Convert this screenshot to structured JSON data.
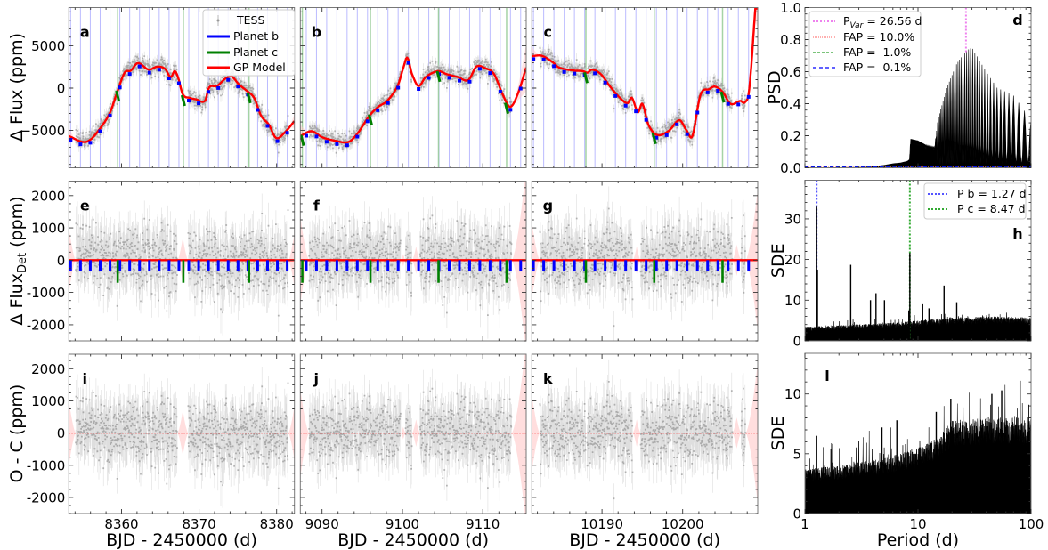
{
  "chart_data": {
    "type": "scatter",
    "light_curves": {
      "xlabel": "BJD - 2450000 (d)",
      "legend": {
        "placement": "top-right",
        "entries": [
          {
            "label": "TESS",
            "color": "#999999"
          },
          {
            "label": "Planet b",
            "color": "#0000ff"
          },
          {
            "label": "Planet c",
            "color": "#008000"
          },
          {
            "label": "GP Model",
            "color": "#ff0000"
          }
        ]
      },
      "planet_b_period": 1.27,
      "planet_c_period": 8.47,
      "planet_b_depth_ppm": 350,
      "planet_c_depth_ppm": 700,
      "scatter_rms_ppm": 430,
      "rows": [
        {
          "ylabel": "Δ Flux (ppm)",
          "ylim": [
            -9400,
            9500
          ],
          "yticks": [
            -5000,
            0,
            5000
          ],
          "ytick_labels": [
            "−5000",
            "0",
            "5000"
          ],
          "yminor": 1000,
          "letters": [
            "a",
            "b",
            "c"
          ]
        },
        {
          "ylabel": "Δ Flux",
          "ylabel_sub": "Det",
          "ylabel_unit": " (ppm)",
          "ylim": [
            -2500,
            2450
          ],
          "yticks": [
            -2000,
            -1000,
            0,
            1000,
            2000
          ],
          "ytick_labels": [
            "-2000",
            "-1000",
            "0",
            "1000",
            "2000"
          ],
          "yminor": 250,
          "letters": [
            "e",
            "f",
            "g"
          ]
        },
        {
          "ylabel": "O - C (ppm)",
          "ylim": [
            -2500,
            2450
          ],
          "yticks": [
            -2000,
            -1000,
            0,
            1000,
            2000
          ],
          "ytick_labels": [
            "-2000",
            "-1000",
            "0",
            "1000",
            "2000"
          ],
          "yminor": 250,
          "letters": [
            "i",
            "j",
            "k"
          ]
        }
      ],
      "columns": [
        {
          "xlim": [
            8353.2,
            8382.3
          ],
          "xticks": [
            8360,
            8370,
            8380
          ],
          "xtick_labels": [
            "8360",
            "8370",
            "8380"
          ],
          "data_segments": [
            [
              8354.1,
              8367.2
            ],
            [
              8368.6,
              8381.5
            ]
          ],
          "planet_b_first_transit": 8353.43,
          "planet_c_first_transit": 8359.5,
          "gp_model": {
            "x": [
              8353.2,
              8355.0,
              8356.0,
              8357.3,
              8358.5,
              8359.45,
              8360.4,
              8361.2,
              8362.1,
              8363.5,
              8364.6,
              8365.6,
              8366.35,
              8366.85,
              8367.3,
              8367.9,
              8368.8,
              8369.6,
              8370.75,
              8371.3,
              8372.3,
              8373.4,
              8374.2,
              8375.15,
              8376.1,
              8377.1,
              8378.0,
              8379.0,
              8379.95,
              8381.1,
              8382.3
            ],
            "y": [
              -5650,
              -6350,
              -6070,
              -4670,
              -2910,
              -450,
              1820,
              2070,
              2950,
              2180,
              2530,
              2280,
              1300,
              2000,
              1230,
              -740,
              -1160,
              -1330,
              -1510,
              70,
              250,
              1120,
              1370,
              420,
              -280,
              -1160,
              -3260,
              -4320,
              -5890,
              -5190,
              -3890
            ]
          }
        },
        {
          "xlim": [
            9087.3,
            9115.4
          ],
          "xticks": [
            9090,
            9100,
            9110
          ],
          "xtick_labels": [
            "9090",
            "9100",
            "9110"
          ],
          "data_segments": [
            [
              9088.4,
              9099.8
            ],
            [
              9100.4,
              9101.2
            ],
            [
              9102.2,
              9113.6
            ]
          ],
          "planet_b_first_transit": 9088.04,
          "planet_c_first_transit": 9087.55,
          "gp_model": {
            "x": [
              9087.3,
              9088.7,
              9090.0,
              9091.8,
              9093.3,
              9094.4,
              9095.9,
              9097.0,
              9098.1,
              9099.4,
              9100.1,
              9100.6,
              9101.2,
              9102.0,
              9102.9,
              9104.4,
              9105.5,
              9106.9,
              9108.2,
              9109.2,
              9110.3,
              9111.4,
              9112.5,
              9113.4,
              9114.3,
              9115.4
            ],
            "y": [
              -5650,
              -5090,
              -5790,
              -6240,
              -6350,
              -5370,
              -3260,
              -2210,
              -1510,
              250,
              2350,
              3580,
              1650,
              250,
              1300,
              2000,
              1650,
              1300,
              950,
              2530,
              2350,
              1650,
              -810,
              -2210,
              -810,
              2420
            ]
          }
        },
        {
          "xlim": [
            10181.3,
            10209.3
          ],
          "xticks": [
            10190,
            10200
          ],
          "xtick_labels": [
            "10190",
            "10200"
          ],
          "data_segments": [
            [
              10182.3,
              10188.0
            ],
            [
              10188.15,
              10193.8
            ],
            [
              10194.8,
              10206.15
            ],
            [
              10207.25,
              10207.8
            ]
          ],
          "planet_b_first_transit": 10181.5,
          "planet_c_first_transit": 10188.0,
          "gp_model": {
            "x": [
              10181.3,
              10182.5,
              10183.8,
              10184.7,
              10186.55,
              10187.65,
              10188.2,
              10188.75,
              10189.85,
              10190.95,
              10192.05,
              10193.15,
              10193.7,
              10194.45,
              10195.0,
              10195.75,
              10196.85,
              10198.3,
              10199.6,
              10200.5,
              10201.2,
              10202.2,
              10203.3,
              10204.0,
              10204.95,
              10205.95,
              10207.15,
              10207.7,
              10208.25,
              10209.0
            ],
            "y": [
              3760,
              3820,
              3120,
              2420,
              2070,
              2000,
              1820,
              2180,
              1650,
              250,
              -980,
              -1790,
              -1160,
              -2840,
              -1860,
              -4320,
              -5540,
              -5020,
              -3790,
              -5020,
              -5650,
              -810,
              -110,
              180,
              -450,
              -1860,
              -1510,
              -1680,
              -110,
              9370
            ]
          }
        }
      ]
    },
    "periodograms": {
      "xlabel": "Period (d)",
      "xscale": "log",
      "xlim": [
        1,
        100
      ],
      "xticks": [
        1,
        10,
        100
      ],
      "xtick_labels": [
        "1",
        "10",
        "100"
      ],
      "panels": [
        {
          "type": "line",
          "letter": "d",
          "ylabel": "PSD",
          "ylim": [
            0,
            1.0
          ],
          "yticks": [
            0,
            0.2,
            0.4,
            0.6,
            0.8,
            1.0
          ],
          "ytick_labels": [
            "0.0",
            "0.2",
            "0.4",
            "0.6",
            "0.8",
            "1.0"
          ],
          "envelope": {
            "period": [
              1,
              3,
              4,
              5,
              6,
              7,
              8,
              8.4,
              8.6,
              10,
              12,
              14,
              15,
              18,
              22,
              26.56,
              30,
              40,
              50,
              70,
              100
            ],
            "power": [
              0,
              0.002,
              0.008,
              0.015,
              0.025,
              0.03,
              0.04,
              0.05,
              0.18,
              0.17,
              0.14,
              0.13,
              0.3,
              0.5,
              0.65,
              0.73,
              0.75,
              0.6,
              0.5,
              0.45,
              0.3
            ]
          },
          "marked_period": {
            "label_main": "P",
            "label_sub": "Var",
            "label_rest": " = 26.56 d",
            "value": 26.56,
            "color": "#ee82ee"
          },
          "fap_levels": [
            {
              "label": "FAP = 10.0%",
              "power": 0.003,
              "color": "#ff7f7f",
              "style": "dotted"
            },
            {
              "label": "FAP =  1.0%",
              "power": 0.005,
              "color": "#2ca02c",
              "style": "dashed"
            },
            {
              "label": "FAP =  0.1%",
              "power": 0.007,
              "color": "#0000ff",
              "style": "dashed"
            }
          ]
        },
        {
          "type": "line",
          "letter": "h",
          "ylabel": "SDE",
          "ylim": [
            0,
            39.5
          ],
          "yticks": [
            0,
            10,
            20,
            30
          ],
          "ytick_labels": [
            "0",
            "10",
            "20",
            "30"
          ],
          "floor": {
            "period": [
              1,
              2,
              5,
              10,
              20,
              50,
              100
            ],
            "sde": [
              3,
              3.3,
              3.8,
              4.3,
              5,
              5.2,
              5
            ]
          },
          "peaks": [
            [
              1.27,
              33
            ],
            [
              1.29,
              17.5
            ],
            [
              2.54,
              18.7
            ],
            [
              3.8,
              10
            ],
            [
              4.25,
              11.7
            ],
            [
              5.05,
              10
            ],
            [
              8.3,
              7.5
            ],
            [
              8.47,
              21.6
            ],
            [
              11,
              9
            ],
            [
              12.5,
              8
            ],
            [
              17,
              13.6
            ],
            [
              22,
              9.5
            ]
          ],
          "marked_periods": [
            {
              "label": "P b = 1.27 d",
              "value": 1.27,
              "color": "#5555ff"
            },
            {
              "label": "P c = 8.47 d",
              "value": 8.47,
              "color": "#33aa33"
            }
          ]
        },
        {
          "type": "line",
          "letter": "l",
          "ylabel": "SDE",
          "ylim": [
            0,
            13.4
          ],
          "yticks": [
            0,
            5,
            10
          ],
          "ytick_labels": [
            "0",
            "5",
            "10"
          ],
          "floor": {
            "period": [
              1,
              2,
              5,
              10,
              15,
              20,
              50,
              100
            ],
            "sde": [
              3.2,
              3.5,
              4,
              4.8,
              5.5,
              6.8,
              7,
              7
            ]
          },
          "peaks": [
            [
              1.27,
              6.5
            ],
            [
              4.8,
              7.2
            ],
            [
              6.5,
              7.8
            ],
            [
              14.5,
              8.5
            ],
            [
              19.5,
              9.6
            ],
            [
              45,
              10.0
            ],
            [
              55,
              10.3
            ],
            [
              80,
              11.1
            ],
            [
              95,
              9.1
            ]
          ]
        }
      ]
    }
  }
}
